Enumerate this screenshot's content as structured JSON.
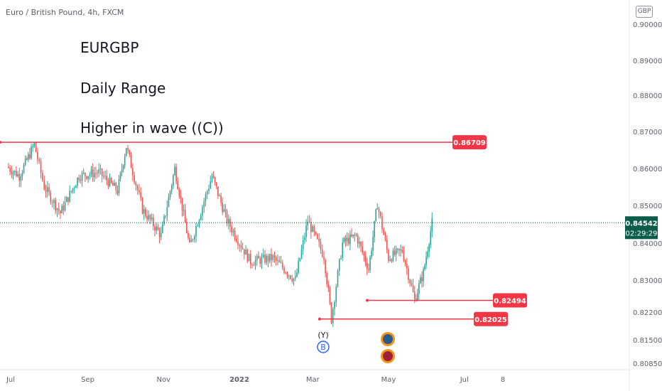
{
  "header": {
    "symbol_title": "Euro / British Pound, 4h, FXCM",
    "currency": "GBP"
  },
  "annotations": [
    "EURGBP",
    "Daily Range",
    "Higher in wave ((C))"
  ],
  "colors": {
    "up_candle": "#26a69a",
    "down_candle": "#ef5350",
    "level_line": "#f23645",
    "current_price_badge": "#0b5c4b",
    "axis_text": "#5d606b",
    "grid_text": "#131722"
  },
  "chart_data": {
    "type": "candlestick",
    "title": "",
    "y_axis": {
      "side": "right",
      "ticks": [
        "0.90000",
        "0.89000",
        "0.88000",
        "0.87000",
        "0.86000",
        "0.85000",
        "0.84000",
        "0.83000",
        "0.82200",
        "0.81500",
        "0.80850"
      ]
    },
    "x_axis": {
      "ticks": [
        "Jul",
        "Sep",
        "Nov",
        "2022",
        "Mar",
        "May",
        "Jul",
        "8"
      ]
    },
    "price_path": [
      {
        "date": "2021-06-28",
        "close": 0.8605
      },
      {
        "date": "2021-07-08",
        "close": 0.858
      },
      {
        "date": "2021-07-20",
        "close": 0.8665
      },
      {
        "date": "2021-07-28",
        "close": 0.855
      },
      {
        "date": "2021-08-10",
        "close": 0.848
      },
      {
        "date": "2021-08-25",
        "close": 0.858
      },
      {
        "date": "2021-09-10",
        "close": 0.859
      },
      {
        "date": "2021-09-25",
        "close": 0.854
      },
      {
        "date": "2021-10-02",
        "close": 0.866
      },
      {
        "date": "2021-10-15",
        "close": 0.849
      },
      {
        "date": "2021-10-30",
        "close": 0.842
      },
      {
        "date": "2021-11-10",
        "close": 0.86
      },
      {
        "date": "2021-11-22",
        "close": 0.839
      },
      {
        "date": "2021-12-10",
        "close": 0.858
      },
      {
        "date": "2021-12-22",
        "close": 0.846
      },
      {
        "date": "2022-01-10",
        "close": 0.835
      },
      {
        "date": "2022-01-28",
        "close": 0.836
      },
      {
        "date": "2022-02-15",
        "close": 0.83
      },
      {
        "date": "2022-02-25",
        "close": 0.846
      },
      {
        "date": "2022-03-10",
        "close": 0.8365
      },
      {
        "date": "2022-03-16",
        "close": 0.8203
      },
      {
        "date": "2022-03-25",
        "close": 0.84
      },
      {
        "date": "2022-04-05",
        "close": 0.842
      },
      {
        "date": "2022-04-15",
        "close": 0.833
      },
      {
        "date": "2022-04-22",
        "close": 0.8505
      },
      {
        "date": "2022-05-01",
        "close": 0.836
      },
      {
        "date": "2022-05-12",
        "close": 0.838
      },
      {
        "date": "2022-05-22",
        "close": 0.825
      },
      {
        "date": "2022-05-29",
        "close": 0.832
      },
      {
        "date": "2022-06-05",
        "close": 0.8454
      }
    ],
    "horizontal_levels": [
      {
        "label": "0.86709",
        "value": 0.86709
      },
      {
        "label": "0.82494",
        "value": 0.82494
      },
      {
        "label": "0.82025",
        "value": 0.82025
      }
    ],
    "current_price": {
      "label": "0.84542",
      "countdown": "02:29:29",
      "value": 0.84542
    },
    "wave_labels": [
      "(Y)",
      "B"
    ],
    "grid": false,
    "legend": "none"
  }
}
